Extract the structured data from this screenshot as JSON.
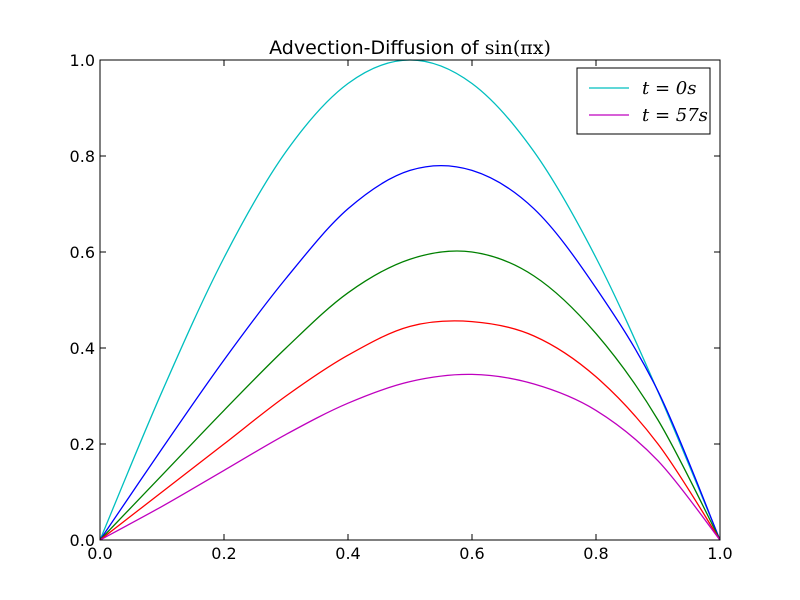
{
  "chart_data": {
    "type": "line",
    "title": "Advection-Diffusion of sin(πx)",
    "title_prefix": "Advection-Diffusion of ",
    "title_math": "sin(πx)",
    "xlabel": "",
    "ylabel": "",
    "xlim": [
      0.0,
      1.0
    ],
    "ylim": [
      0.0,
      1.0
    ],
    "grid": false,
    "legend_position": "top-right",
    "x_ticks": [
      "0.0",
      "0.2",
      "0.4",
      "0.6",
      "0.8",
      "1.0"
    ],
    "y_ticks": [
      "0.0",
      "0.2",
      "0.4",
      "0.6",
      "0.8",
      "1.0"
    ],
    "legend": [
      {
        "label": "t = 0s",
        "color": "#00bfbf"
      },
      {
        "label": "t = 57s",
        "color": "#bf00bf"
      }
    ],
    "x": [
      0.0,
      0.1,
      0.2,
      0.3,
      0.4,
      0.5,
      0.6,
      0.7,
      0.8,
      0.9,
      1.0
    ],
    "series": [
      {
        "name": "t = 0s",
        "color": "#00bfbf",
        "values": [
          0.0,
          0.309,
          0.588,
          0.809,
          0.951,
          1.0,
          0.951,
          0.809,
          0.588,
          0.309,
          0.0
        ]
      },
      {
        "color": "#0000ff",
        "values": [
          0.0,
          0.19,
          0.375,
          0.545,
          0.69,
          0.77,
          0.77,
          0.69,
          0.525,
          0.31,
          0.0
        ]
      },
      {
        "color": "#008000",
        "values": [
          0.0,
          0.135,
          0.27,
          0.4,
          0.515,
          0.585,
          0.6,
          0.55,
          0.43,
          0.25,
          0.0
        ]
      },
      {
        "color": "#ff0000",
        "values": [
          0.0,
          0.1,
          0.2,
          0.3,
          0.385,
          0.445,
          0.455,
          0.425,
          0.34,
          0.2,
          0.0
        ]
      },
      {
        "name": "t = 57s",
        "color": "#bf00bf",
        "values": [
          0.0,
          0.07,
          0.145,
          0.22,
          0.285,
          0.33,
          0.345,
          0.325,
          0.27,
          0.165,
          0.0
        ]
      }
    ]
  }
}
